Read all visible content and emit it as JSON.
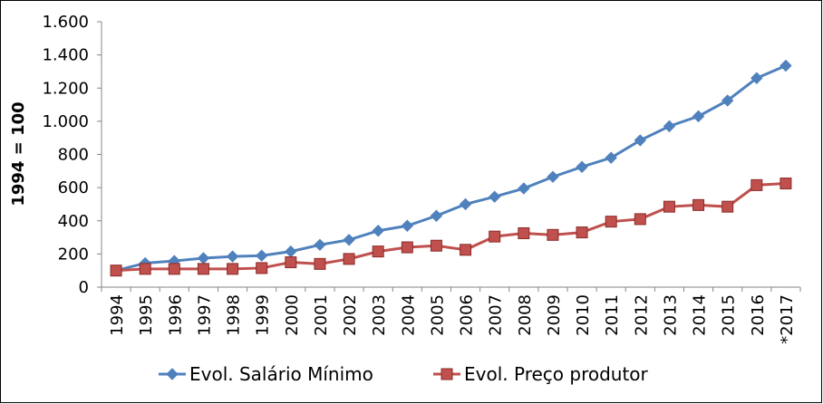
{
  "chart_data": {
    "type": "line",
    "ylabel": "1994 = 100",
    "categories": [
      "1994",
      "1995",
      "1996",
      "1997",
      "1998",
      "1999",
      "2000",
      "2001",
      "2002",
      "2003",
      "2004",
      "2005",
      "2006",
      "2007",
      "2008",
      "2009",
      "2010",
      "2011",
      "2012",
      "2013",
      "2014",
      "2015",
      "2016",
      "*2017"
    ],
    "series": [
      {
        "name": "Evol. Salário Mínimo",
        "color": "#4f81bd",
        "marker": "diamond",
        "values": [
          100,
          145,
          158,
          175,
          185,
          190,
          215,
          255,
          285,
          340,
          370,
          430,
          500,
          545,
          595,
          665,
          725,
          780,
          885,
          970,
          1030,
          1125,
          1260,
          1335
        ]
      },
      {
        "name": "Evol. Preço produtor",
        "color": "#c0504d",
        "marker": "square",
        "values": [
          100,
          110,
          110,
          110,
          110,
          115,
          150,
          140,
          170,
          215,
          240,
          250,
          225,
          305,
          325,
          315,
          330,
          395,
          410,
          485,
          495,
          485,
          615,
          625
        ]
      }
    ],
    "ylim": [
      0,
      1600
    ],
    "yticks": [
      0,
      200,
      400,
      600,
      800,
      {
        "value": 1000,
        "label": "1.000"
      },
      {
        "value": 1200,
        "label": "1.200"
      },
      {
        "value": 1400,
        "label": "1.400"
      },
      {
        "value": 1600,
        "label": "1.600"
      }
    ],
    "grid": false,
    "legend": "bottom"
  }
}
